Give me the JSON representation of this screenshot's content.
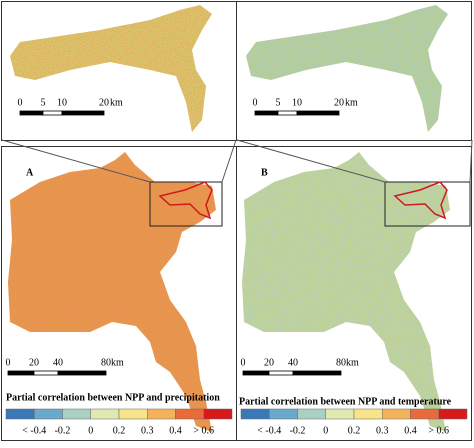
{
  "panel_a": {
    "label": "A",
    "inset_scale": {
      "ticks": [
        "0",
        "5",
        "10",
        "20"
      ],
      "unit": "km"
    },
    "scale": {
      "ticks": [
        "0",
        "20",
        "40",
        "80"
      ],
      "unit": "km"
    },
    "legend": {
      "title": "Partial correlation between NPP and precipitation",
      "labels": [
        "< -0.4",
        "-0.2",
        "0",
        "0.2",
        "0.3",
        "0.4",
        "> 0.6"
      ],
      "colors": [
        "#3a78b8",
        "#6aa9c9",
        "#a9d0c2",
        "#e1e9b2",
        "#f6e38a",
        "#f4b35a",
        "#e96a3a",
        "#d7191c"
      ]
    }
  },
  "panel_b": {
    "label": "B",
    "inset_scale": {
      "ticks": [
        "0",
        "5",
        "10",
        "20"
      ],
      "unit": "km"
    },
    "scale": {
      "ticks": [
        "0",
        "20",
        "40",
        "80"
      ],
      "unit": "km"
    },
    "legend": {
      "title": "Partial correlation between NPP and temperature",
      "labels": [
        "< -0.4",
        "-0.2",
        "0",
        "0.2",
        "0.3",
        "0.4",
        "> 0.6"
      ],
      "colors": [
        "#3a78b8",
        "#6aa9c9",
        "#a9d0c2",
        "#e1e9b2",
        "#f6e38a",
        "#f4b35a",
        "#e96a3a",
        "#d7191c"
      ]
    }
  }
}
